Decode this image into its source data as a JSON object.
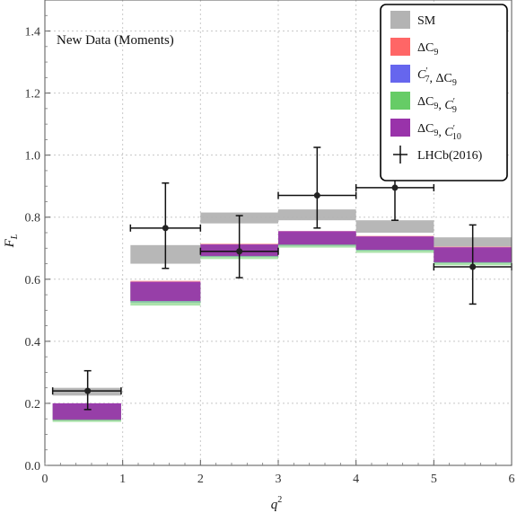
{
  "chart_data": {
    "type": "bar",
    "title": "",
    "annotation": "New Data (Moments)",
    "xlabel": "q²",
    "ylabel": "F_L",
    "xlim": [
      0,
      6
    ],
    "ylim": [
      0,
      1.5
    ],
    "xticks": [
      "0",
      "1",
      "2",
      "3",
      "4",
      "5",
      "6"
    ],
    "yticks": [
      "0.0",
      "0.2",
      "0.4",
      "0.6",
      "0.8",
      "1.0",
      "1.2",
      "1.4"
    ],
    "grid": true,
    "legend_position": "top-right",
    "bins": [
      [
        0.1,
        0.98
      ],
      [
        1.1,
        2.0
      ],
      [
        2.0,
        3.0
      ],
      [
        3.0,
        4.0
      ],
      [
        4.0,
        5.0
      ],
      [
        5.0,
        6.0
      ]
    ],
    "series": [
      {
        "name": "SM",
        "color": "#b3b3b3",
        "bands": [
          [
            0.225,
            0.25
          ],
          [
            0.65,
            0.71
          ],
          [
            0.78,
            0.815
          ],
          [
            0.79,
            0.825
          ],
          [
            0.75,
            0.79
          ],
          [
            0.705,
            0.735
          ]
        ]
      },
      {
        "name": "ΔC9",
        "color": "#ff6666",
        "bands": [
          [
            0.145,
            0.2
          ],
          [
            0.53,
            0.595
          ],
          [
            0.675,
            0.715
          ],
          [
            0.71,
            0.755
          ],
          [
            0.695,
            0.74
          ],
          [
            0.655,
            0.705
          ]
        ]
      },
      {
        "name": "C7′, ΔC9",
        "color": "#6666ee",
        "bands": [
          [
            0.145,
            0.2
          ],
          [
            0.525,
            0.59
          ],
          [
            0.672,
            0.712
          ],
          [
            0.708,
            0.752
          ],
          [
            0.692,
            0.737
          ],
          [
            0.652,
            0.702
          ]
        ]
      },
      {
        "name": "ΔC9, C9′",
        "color": "#66cc66",
        "bands": [
          [
            0.14,
            0.195
          ],
          [
            0.515,
            0.585
          ],
          [
            0.665,
            0.708
          ],
          [
            0.702,
            0.748
          ],
          [
            0.685,
            0.733
          ],
          [
            0.645,
            0.697
          ]
        ]
      },
      {
        "name": "ΔC9, C10′",
        "color": "#9933aa",
        "bands": [
          [
            0.148,
            0.2
          ],
          [
            0.53,
            0.592
          ],
          [
            0.675,
            0.712
          ],
          [
            0.712,
            0.755
          ],
          [
            0.695,
            0.738
          ],
          [
            0.655,
            0.703
          ]
        ]
      }
    ],
    "measurements": {
      "name": "LHCb(2016)",
      "points": [
        {
          "x": 0.55,
          "x_err": [
            0.45,
            0.43
          ],
          "y": 0.24,
          "y_err": [
            0.06,
            0.065
          ]
        },
        {
          "x": 1.55,
          "x_err": [
            0.45,
            0.45
          ],
          "y": 0.765,
          "y_err": [
            0.13,
            0.145
          ]
        },
        {
          "x": 2.5,
          "x_err": [
            0.5,
            0.5
          ],
          "y": 0.69,
          "y_err": [
            0.085,
            0.115
          ]
        },
        {
          "x": 3.5,
          "x_err": [
            0.5,
            0.5
          ],
          "y": 0.87,
          "y_err": [
            0.105,
            0.155
          ]
        },
        {
          "x": 4.5,
          "x_err": [
            0.5,
            0.5
          ],
          "y": 0.895,
          "y_err": [
            0.105,
            0.105
          ]
        },
        {
          "x": 5.5,
          "x_err": [
            0.5,
            0.5
          ],
          "y": 0.64,
          "y_err": [
            0.12,
            0.135
          ]
        }
      ]
    }
  }
}
